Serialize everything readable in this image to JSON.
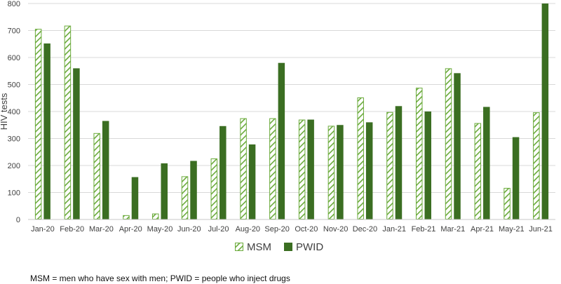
{
  "chart_data": {
    "type": "bar",
    "categories": [
      "Jan-20",
      "Feb-20",
      "Mar-20",
      "Apr-20",
      "May-20",
      "Jun-20",
      "Jul-20",
      "Aug-20",
      "Sep-20",
      "Oct-20",
      "Nov-20",
      "Dec-20",
      "Jan-21",
      "Feb-21",
      "Mar-21",
      "Apr-21",
      "May-21",
      "Jun-21"
    ],
    "series": [
      {
        "name": "MSM",
        "values": [
          706,
          718,
          320,
          16,
          22,
          160,
          226,
          375,
          375,
          370,
          347,
          452,
          398,
          488,
          560,
          357,
          117,
          397
        ],
        "color": "#6aaa3a",
        "pattern": "diagonal-hatch"
      },
      {
        "name": "PWID",
        "values": [
          652,
          560,
          365,
          157,
          208,
          217,
          346,
          278,
          580,
          370,
          350,
          360,
          420,
          400,
          542,
          417,
          305,
          800
        ],
        "color": "#3b6e22",
        "pattern": "solid"
      }
    ],
    "ylabel": "HIV tests",
    "xlabel": "",
    "ylim": [
      0,
      800
    ],
    "yticks": [
      0,
      100,
      200,
      300,
      400,
      500,
      600,
      700,
      800
    ],
    "grid": true,
    "legend": "bottom-center"
  },
  "footnote": "MSM = men who have sex with men; PWID = people who inject drugs"
}
